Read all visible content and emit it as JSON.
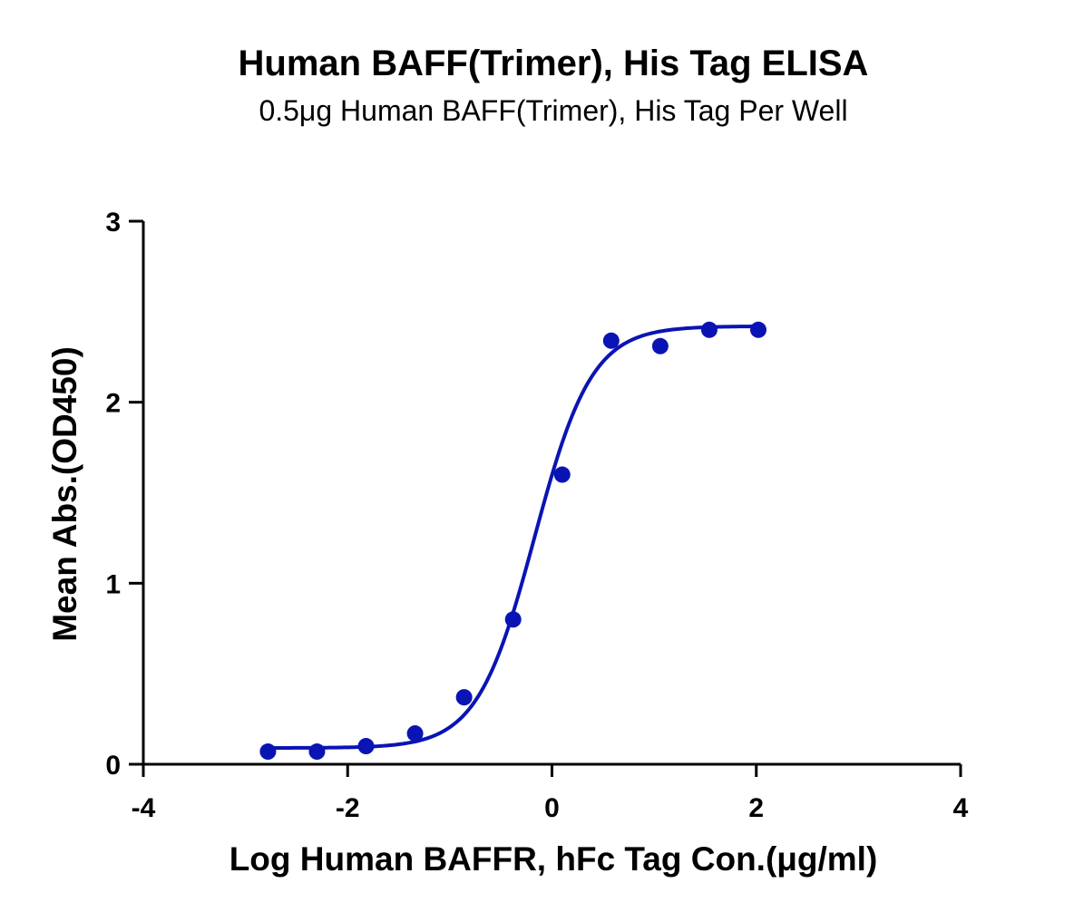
{
  "chart_data": {
    "type": "scatter",
    "title": "Human BAFF(Trimer), His Tag ELISA",
    "subtitle": "0.5μg Human BAFF(Trimer), His Tag Per Well",
    "xlabel": "Log Human BAFFR, hFc Tag Con.(μg/ml)",
    "ylabel": "Mean Abs.(OD450)",
    "xlim": [
      -4,
      4
    ],
    "ylim": [
      0,
      3
    ],
    "xticks": [
      -4,
      -2,
      0,
      2,
      4
    ],
    "yticks": [
      0,
      1,
      2,
      3
    ],
    "xtick_labels": [
      "-4",
      "-2",
      "0",
      "2",
      "4"
    ],
    "ytick_labels": [
      "0",
      "1",
      "2",
      "3"
    ],
    "grid": false,
    "series": [
      {
        "color": "#0A14B4",
        "points": [
          {
            "x": -2.78,
            "y": 0.07
          },
          {
            "x": -2.3,
            "y": 0.07
          },
          {
            "x": -1.82,
            "y": 0.1
          },
          {
            "x": -1.34,
            "y": 0.17
          },
          {
            "x": -0.86,
            "y": 0.37
          },
          {
            "x": -0.38,
            "y": 0.8
          },
          {
            "x": 0.1,
            "y": 1.6
          },
          {
            "x": 0.58,
            "y": 2.34
          },
          {
            "x": 1.06,
            "y": 2.31
          },
          {
            "x": 1.54,
            "y": 2.4
          },
          {
            "x": 2.02,
            "y": 2.4
          }
        ],
        "fit": {
          "model": "4PL",
          "bottom": 0.09,
          "top": 2.42,
          "logEC50": -0.17,
          "hill": 1.55,
          "x_range": [
            -2.78,
            2.02
          ]
        }
      }
    ]
  }
}
